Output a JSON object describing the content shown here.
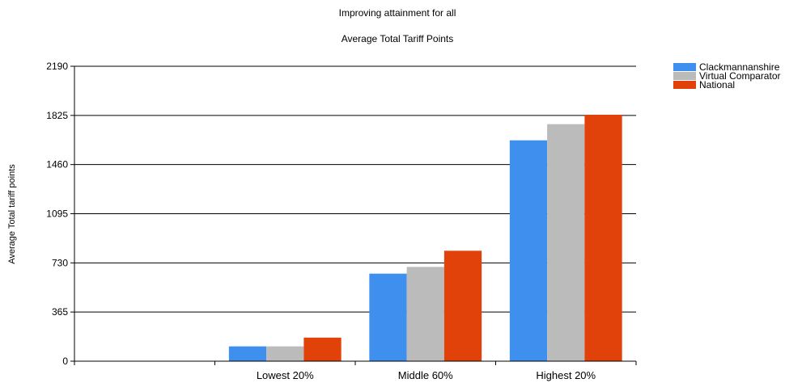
{
  "chart_data": {
    "type": "bar",
    "title": "Improving attainment for all",
    "subtitle": "Average Total Tariff Points",
    "xlabel": "",
    "ylabel": "Average Total tariff points",
    "categories": [
      "Lowest 20%",
      "Middle 60%",
      "Highest 20%"
    ],
    "series": [
      {
        "name": "Clackmannanshire",
        "color": "#3f8fef",
        "values": [
          110,
          650,
          1640
        ]
      },
      {
        "name": "Virtual Comparator",
        "color": "#bbbbbb",
        "values": [
          110,
          700,
          1760
        ]
      },
      {
        "name": "National",
        "color": "#e0420a",
        "values": [
          175,
          820,
          1830
        ]
      }
    ],
    "yticks": [
      0,
      365,
      730,
      1095,
      1460,
      1825,
      2190
    ],
    "ylim": [
      0,
      2190
    ],
    "grid": true,
    "legend": "top-right"
  }
}
